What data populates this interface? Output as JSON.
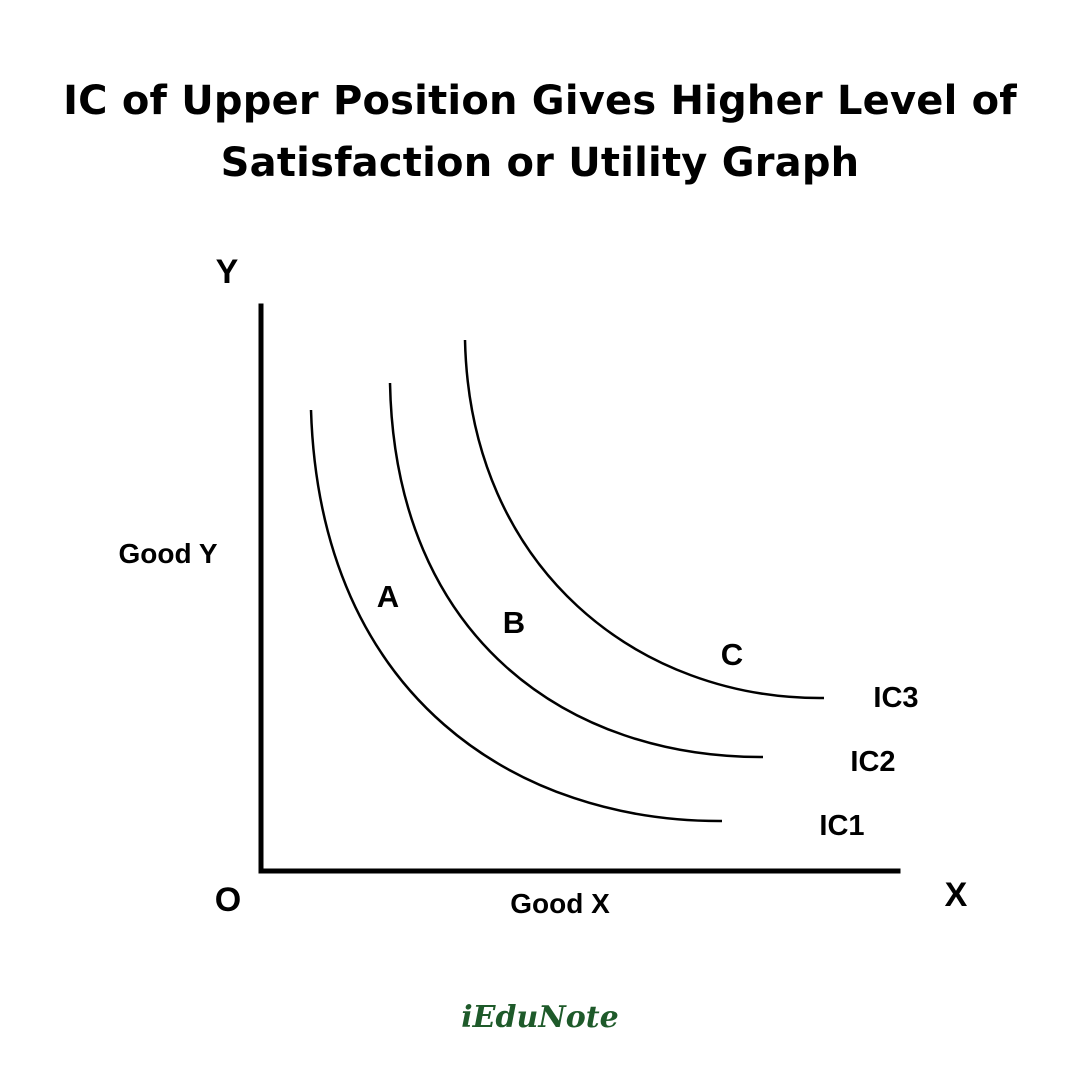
{
  "title": {
    "line1": "IC of Upper Position Gives Higher Level of",
    "line2": "Satisfaction or Utility Graph"
  },
  "diagram": {
    "y_axis_label": "Y",
    "x_axis_label": "X",
    "origin_label": "O",
    "y_axis_title": "Good Y",
    "x_axis_title": "Good X",
    "curves": [
      {
        "name": "IC1",
        "point_label": "A"
      },
      {
        "name": "IC2",
        "point_label": "B"
      },
      {
        "name": "IC3",
        "point_label": "C"
      }
    ]
  },
  "brand": {
    "logo_text": "iEduNote",
    "color": "#1e5a2a"
  }
}
